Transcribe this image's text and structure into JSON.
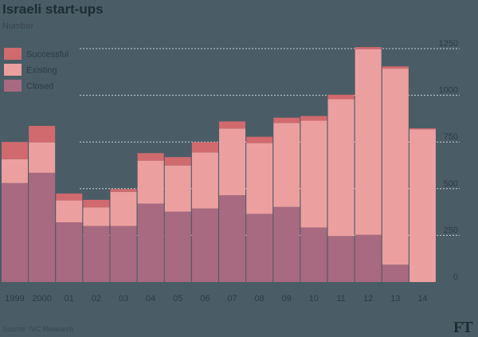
{
  "title": "Israeli start-ups",
  "subtitle": "Number",
  "source": "Source: IVC Research",
  "logo": "FT",
  "colors": {
    "background": "#4a5d66",
    "Successful": "#d16a6e",
    "Existing": "#ec9f9f",
    "Closed": "#a86a80",
    "grid": "#c7d1d5"
  },
  "chart_data": {
    "type": "bar",
    "stacked": true,
    "title": "Israeli start-ups",
    "subtitle": "Number",
    "xlabel": "",
    "ylabel": "",
    "categories": [
      "1999",
      "2000",
      "01",
      "02",
      "03",
      "04",
      "05",
      "06",
      "07",
      "08",
      "09",
      "10",
      "11",
      "12",
      "13",
      "14"
    ],
    "series": [
      {
        "name": "Closed",
        "values": [
          530,
          585,
          320,
          300,
          300,
          420,
          377,
          394,
          465,
          365,
          402,
          292,
          246,
          253,
          93,
          0
        ]
      },
      {
        "name": "Existing",
        "values": [
          128,
          163,
          117,
          100,
          183,
          230,
          247,
          300,
          357,
          379,
          450,
          572,
          733,
          994,
          1050,
          818
        ]
      },
      {
        "name": "Successful",
        "values": [
          92,
          88,
          37,
          40,
          15,
          40,
          45,
          55,
          38,
          34,
          28,
          25,
          24,
          11,
          12,
          5
        ]
      }
    ],
    "ylim": [
      0,
      1250
    ],
    "yticks": [
      0,
      250,
      500,
      750,
      1000,
      1250
    ],
    "ytick_labels": [
      "0",
      "250",
      "500",
      "750",
      "1000",
      "1250"
    ],
    "grid": true,
    "legend_position": "top-left"
  }
}
